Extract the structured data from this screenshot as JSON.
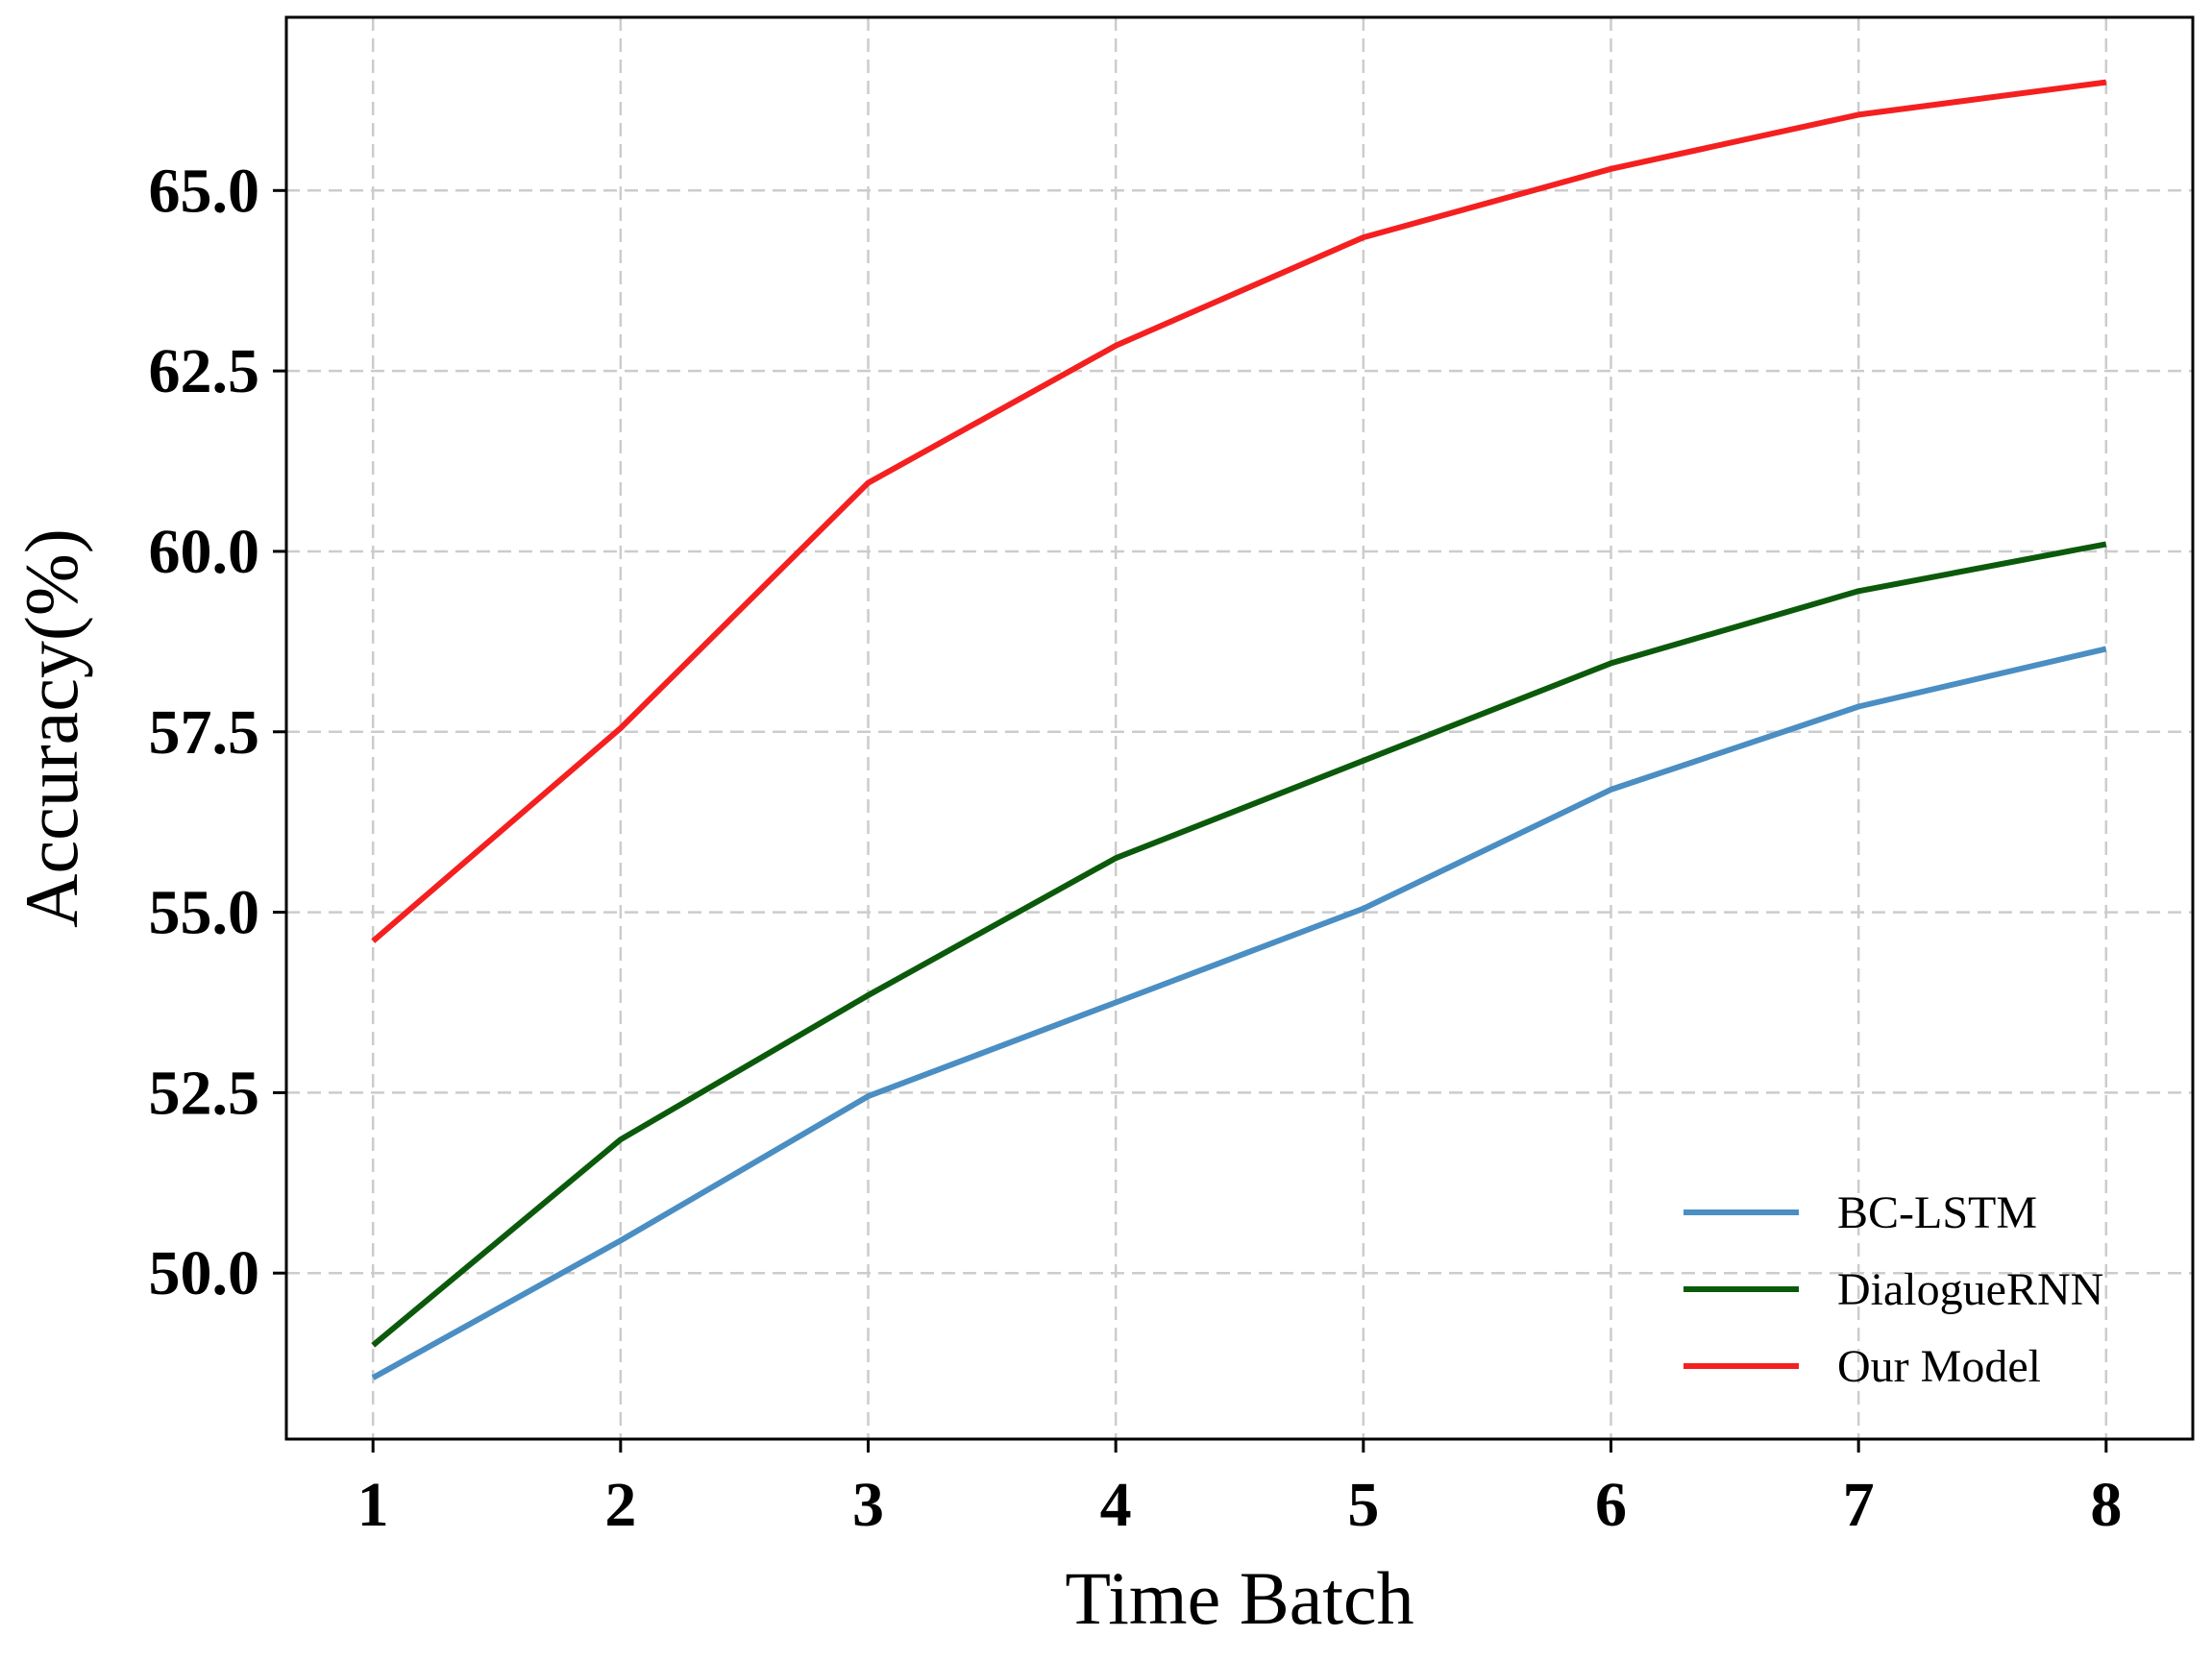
{
  "chart_data": {
    "type": "line",
    "title": "",
    "xlabel": "Time Batch",
    "ylabel": "Accuracy(%)",
    "x": [
      1,
      2,
      3,
      4,
      5,
      6,
      7,
      8
    ],
    "xlim": [
      0.65,
      8.35
    ],
    "ylim": [
      47.7,
      67.4
    ],
    "xticks": [
      1,
      2,
      3,
      4,
      5,
      6,
      7,
      8
    ],
    "xtick_labels": [
      "1",
      "2",
      "3",
      "4",
      "5",
      "6",
      "7",
      "8"
    ],
    "yticks": [
      50.0,
      52.5,
      55.0,
      57.5,
      60.0,
      62.5,
      65.0
    ],
    "ytick_labels": [
      "50.0",
      "52.5",
      "55.0",
      "57.5",
      "60.0",
      "62.5",
      "65.0"
    ],
    "grid": true,
    "legend_position": "lower-right",
    "series": [
      {
        "name": "BC-LSTM",
        "color": "#4a8ec3",
        "values": [
          48.55,
          50.45,
          52.45,
          53.75,
          55.05,
          56.7,
          57.85,
          58.65
        ]
      },
      {
        "name": "DialogueRNN",
        "color": "#0b5a0b",
        "values": [
          49.0,
          51.85,
          53.85,
          55.75,
          57.1,
          58.45,
          59.45,
          60.1
        ]
      },
      {
        "name": "Our Model",
        "color": "#f42020",
        "values": [
          54.6,
          57.55,
          60.95,
          62.85,
          64.35,
          65.3,
          66.05,
          66.5
        ]
      }
    ]
  }
}
